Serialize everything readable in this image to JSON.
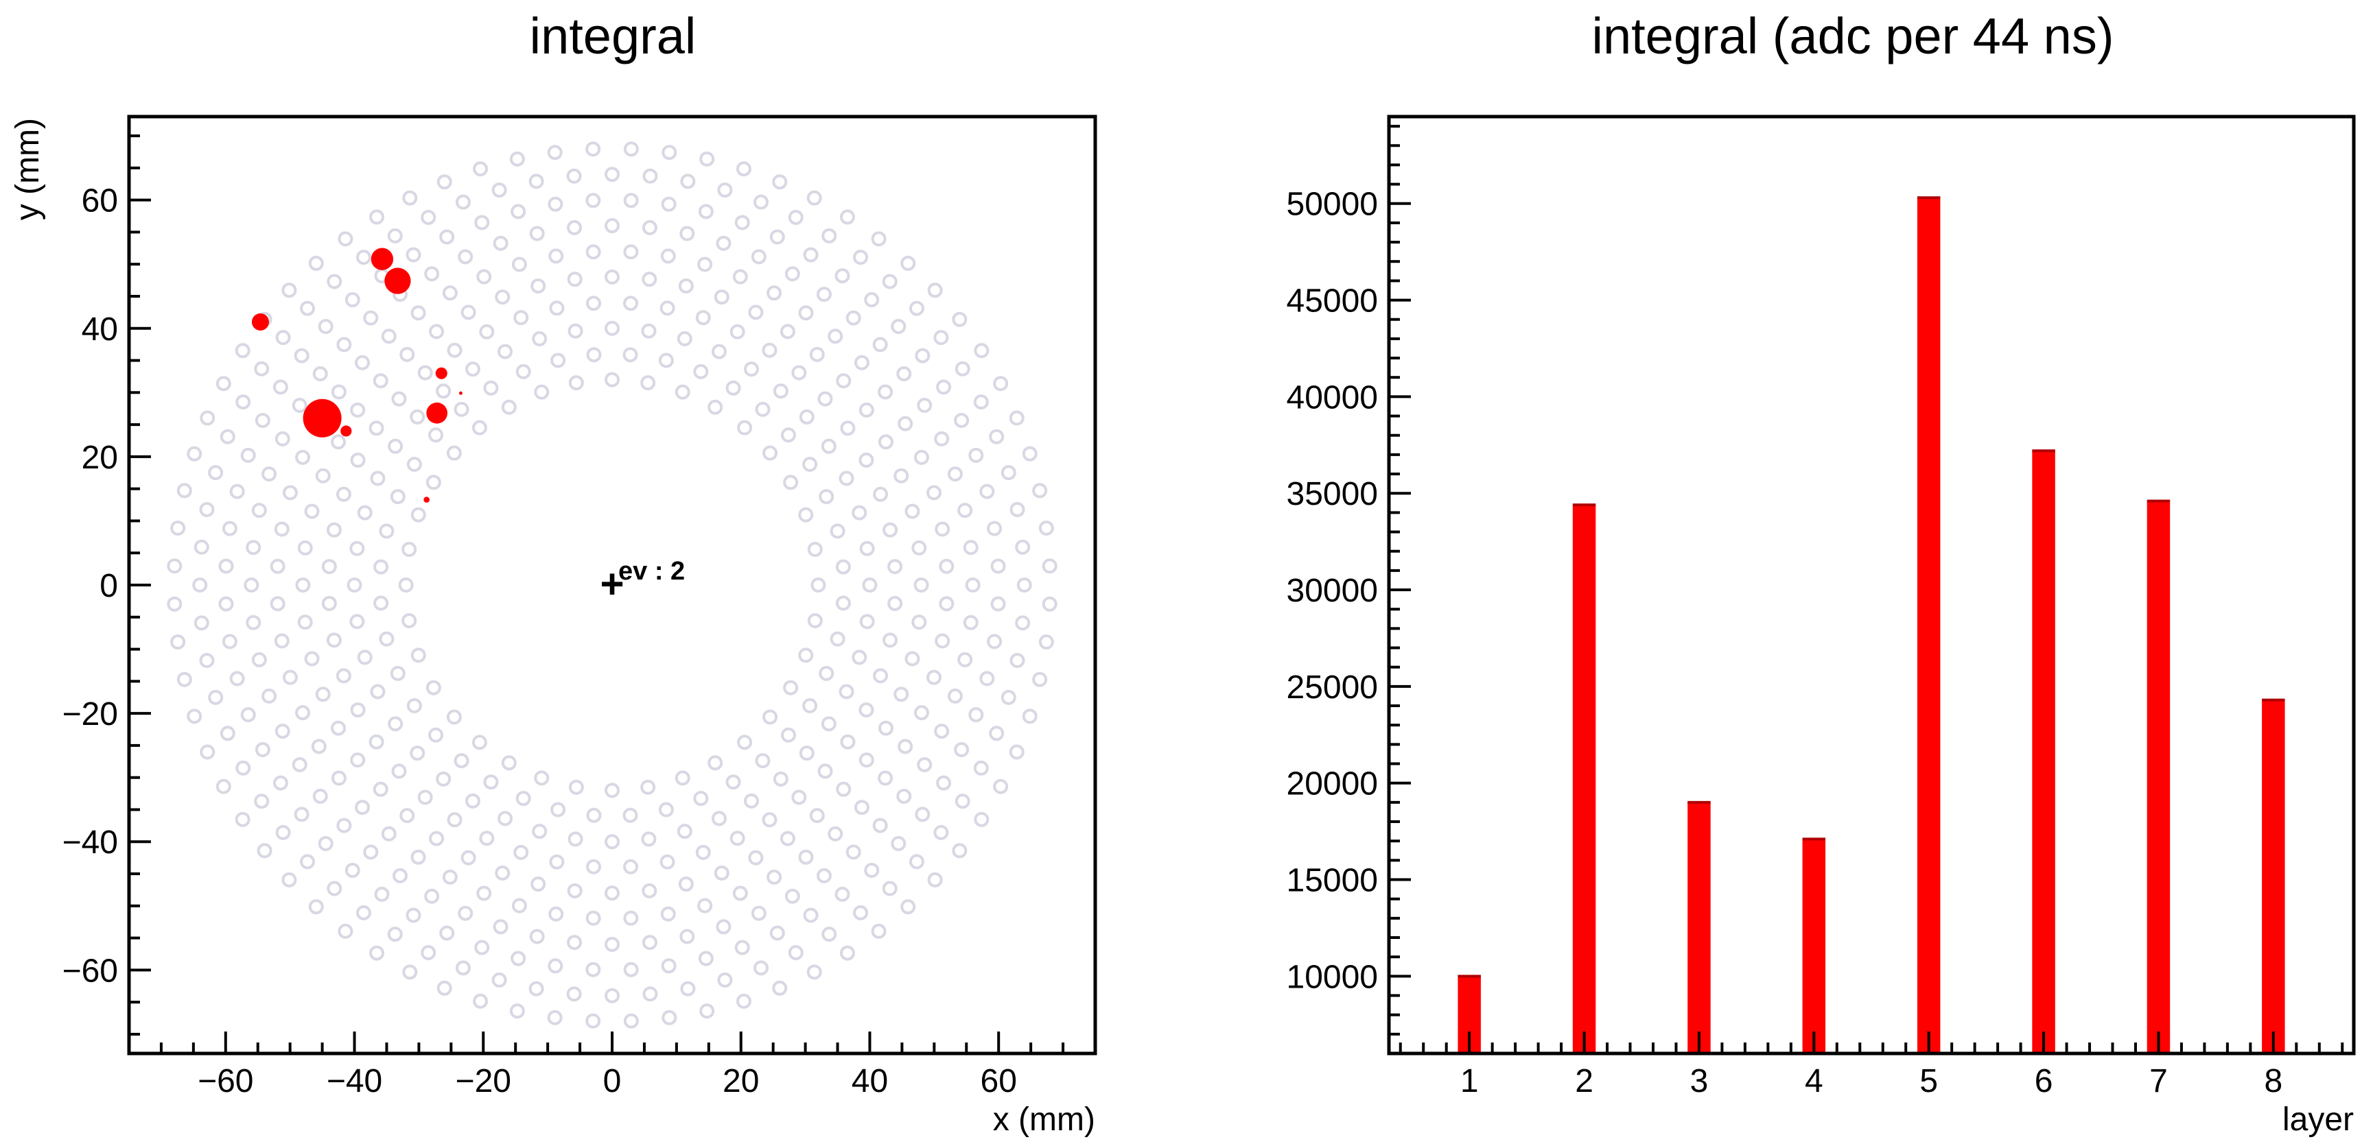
{
  "chart_data": [
    {
      "type": "scatter",
      "title": "integral",
      "xlabel": "x (mm)",
      "ylabel": "y (mm)",
      "xlim": [
        -75,
        75
      ],
      "ylim": [
        -73,
        73
      ],
      "xticks": [
        -60,
        -40,
        -20,
        0,
        20,
        40,
        60
      ],
      "yticks": [
        -60,
        -40,
        -20,
        0,
        20,
        40,
        60
      ],
      "tick_labels": {
        "x": [
          "−60",
          "−40",
          "−20",
          "0",
          "20",
          "40",
          "60"
        ],
        "y": [
          "−60",
          "−40",
          "−20",
          "0",
          "20",
          "40",
          "60"
        ]
      },
      "annotation": {
        "text": "ev : 2",
        "marker": "+",
        "x": 0,
        "y": 0
      },
      "colors": {
        "hit": "#ff0000",
        "pad": "#d8d8e4"
      },
      "pad_rings": [
        {
          "radius": 32,
          "count": 36
        },
        {
          "radius": 36,
          "count": 40
        },
        {
          "radius": 40,
          "count": 44
        },
        {
          "radius": 44,
          "count": 48
        },
        {
          "radius": 48,
          "count": 52
        },
        {
          "radius": 52,
          "count": 56
        },
        {
          "radius": 56,
          "count": 60
        },
        {
          "radius": 60,
          "count": 64
        },
        {
          "radius": 64,
          "count": 68
        },
        {
          "radius": 68,
          "count": 72
        }
      ],
      "hits": [
        {
          "x": -54.6,
          "y": 41.0,
          "integral": 6000
        },
        {
          "x": -45.0,
          "y": 26.0,
          "integral": 30000
        },
        {
          "x": -41.3,
          "y": 24.0,
          "integral": 2500
        },
        {
          "x": -35.7,
          "y": 50.8,
          "integral": 10000
        },
        {
          "x": -33.3,
          "y": 47.4,
          "integral": 14000
        },
        {
          "x": -27.2,
          "y": 26.8,
          "integral": 9000
        },
        {
          "x": -26.5,
          "y": 33.0,
          "integral": 2800
        },
        {
          "x": -28.8,
          "y": 13.3,
          "integral": 700
        },
        {
          "x": -23.5,
          "y": 29.9,
          "integral": 200
        }
      ]
    },
    {
      "type": "bar",
      "title": "integral (adc per 44 ns)",
      "xlabel": "layer",
      "ylabel": "",
      "categories": [
        "1",
        "2",
        "3",
        "4",
        "5",
        "6",
        "7",
        "8"
      ],
      "values": [
        10000,
        34400,
        19000,
        17100,
        50300,
        37200,
        34600,
        24300
      ],
      "ylim": [
        6000,
        54500
      ],
      "xlim": [
        0.3,
        8.7
      ],
      "yticks": [
        10000,
        15000,
        20000,
        25000,
        30000,
        35000,
        40000,
        45000,
        50000
      ],
      "tick_labels": {
        "y": [
          "10000",
          "15000",
          "20000",
          "25000",
          "30000",
          "35000",
          "40000",
          "45000",
          "50000"
        ]
      },
      "bar_width_layers": 0.2,
      "colors": {
        "bar": "#ff0000"
      }
    }
  ]
}
